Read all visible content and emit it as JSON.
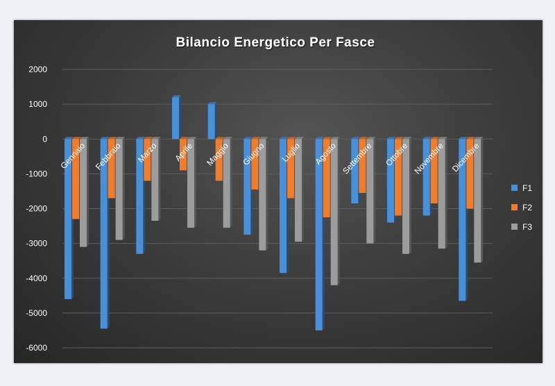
{
  "chart_data": {
    "type": "bar",
    "title": "Bilancio Energetico Per Fasce",
    "categories": [
      "Gennaio",
      "Febbraio",
      "Marzo",
      "Aprile",
      "Maggio",
      "Giugno",
      "Luglio",
      "Agosto",
      "Settembre",
      "Ottobre",
      "Novembre",
      "Dicembre"
    ],
    "series": [
      {
        "name": "F1",
        "color": "#4a90d9",
        "values": [
          -4600,
          -5450,
          -3300,
          1200,
          1000,
          -2750,
          -3850,
          -5500,
          -1850,
          -2400,
          -2200,
          -4650
        ]
      },
      {
        "name": "F2",
        "color": "#ed7d31",
        "values": [
          -2300,
          -1700,
          -1200,
          -900,
          -1200,
          -1450,
          -1700,
          -2250,
          -1550,
          -2200,
          -1850,
          -2000
        ]
      },
      {
        "name": "F3",
        "color": "#9c9c9c",
        "values": [
          -3100,
          -2900,
          -2350,
          -2550,
          -2550,
          -3200,
          -2950,
          -4200,
          -3000,
          -3300,
          -3150,
          -3550
        ]
      }
    ],
    "yticks": [
      2000,
      1000,
      0,
      -1000,
      -2000,
      -3000,
      -4000,
      -5000,
      -6000
    ],
    "ylim": [
      -6000,
      2000
    ],
    "grid": true,
    "legend_position": "right"
  }
}
